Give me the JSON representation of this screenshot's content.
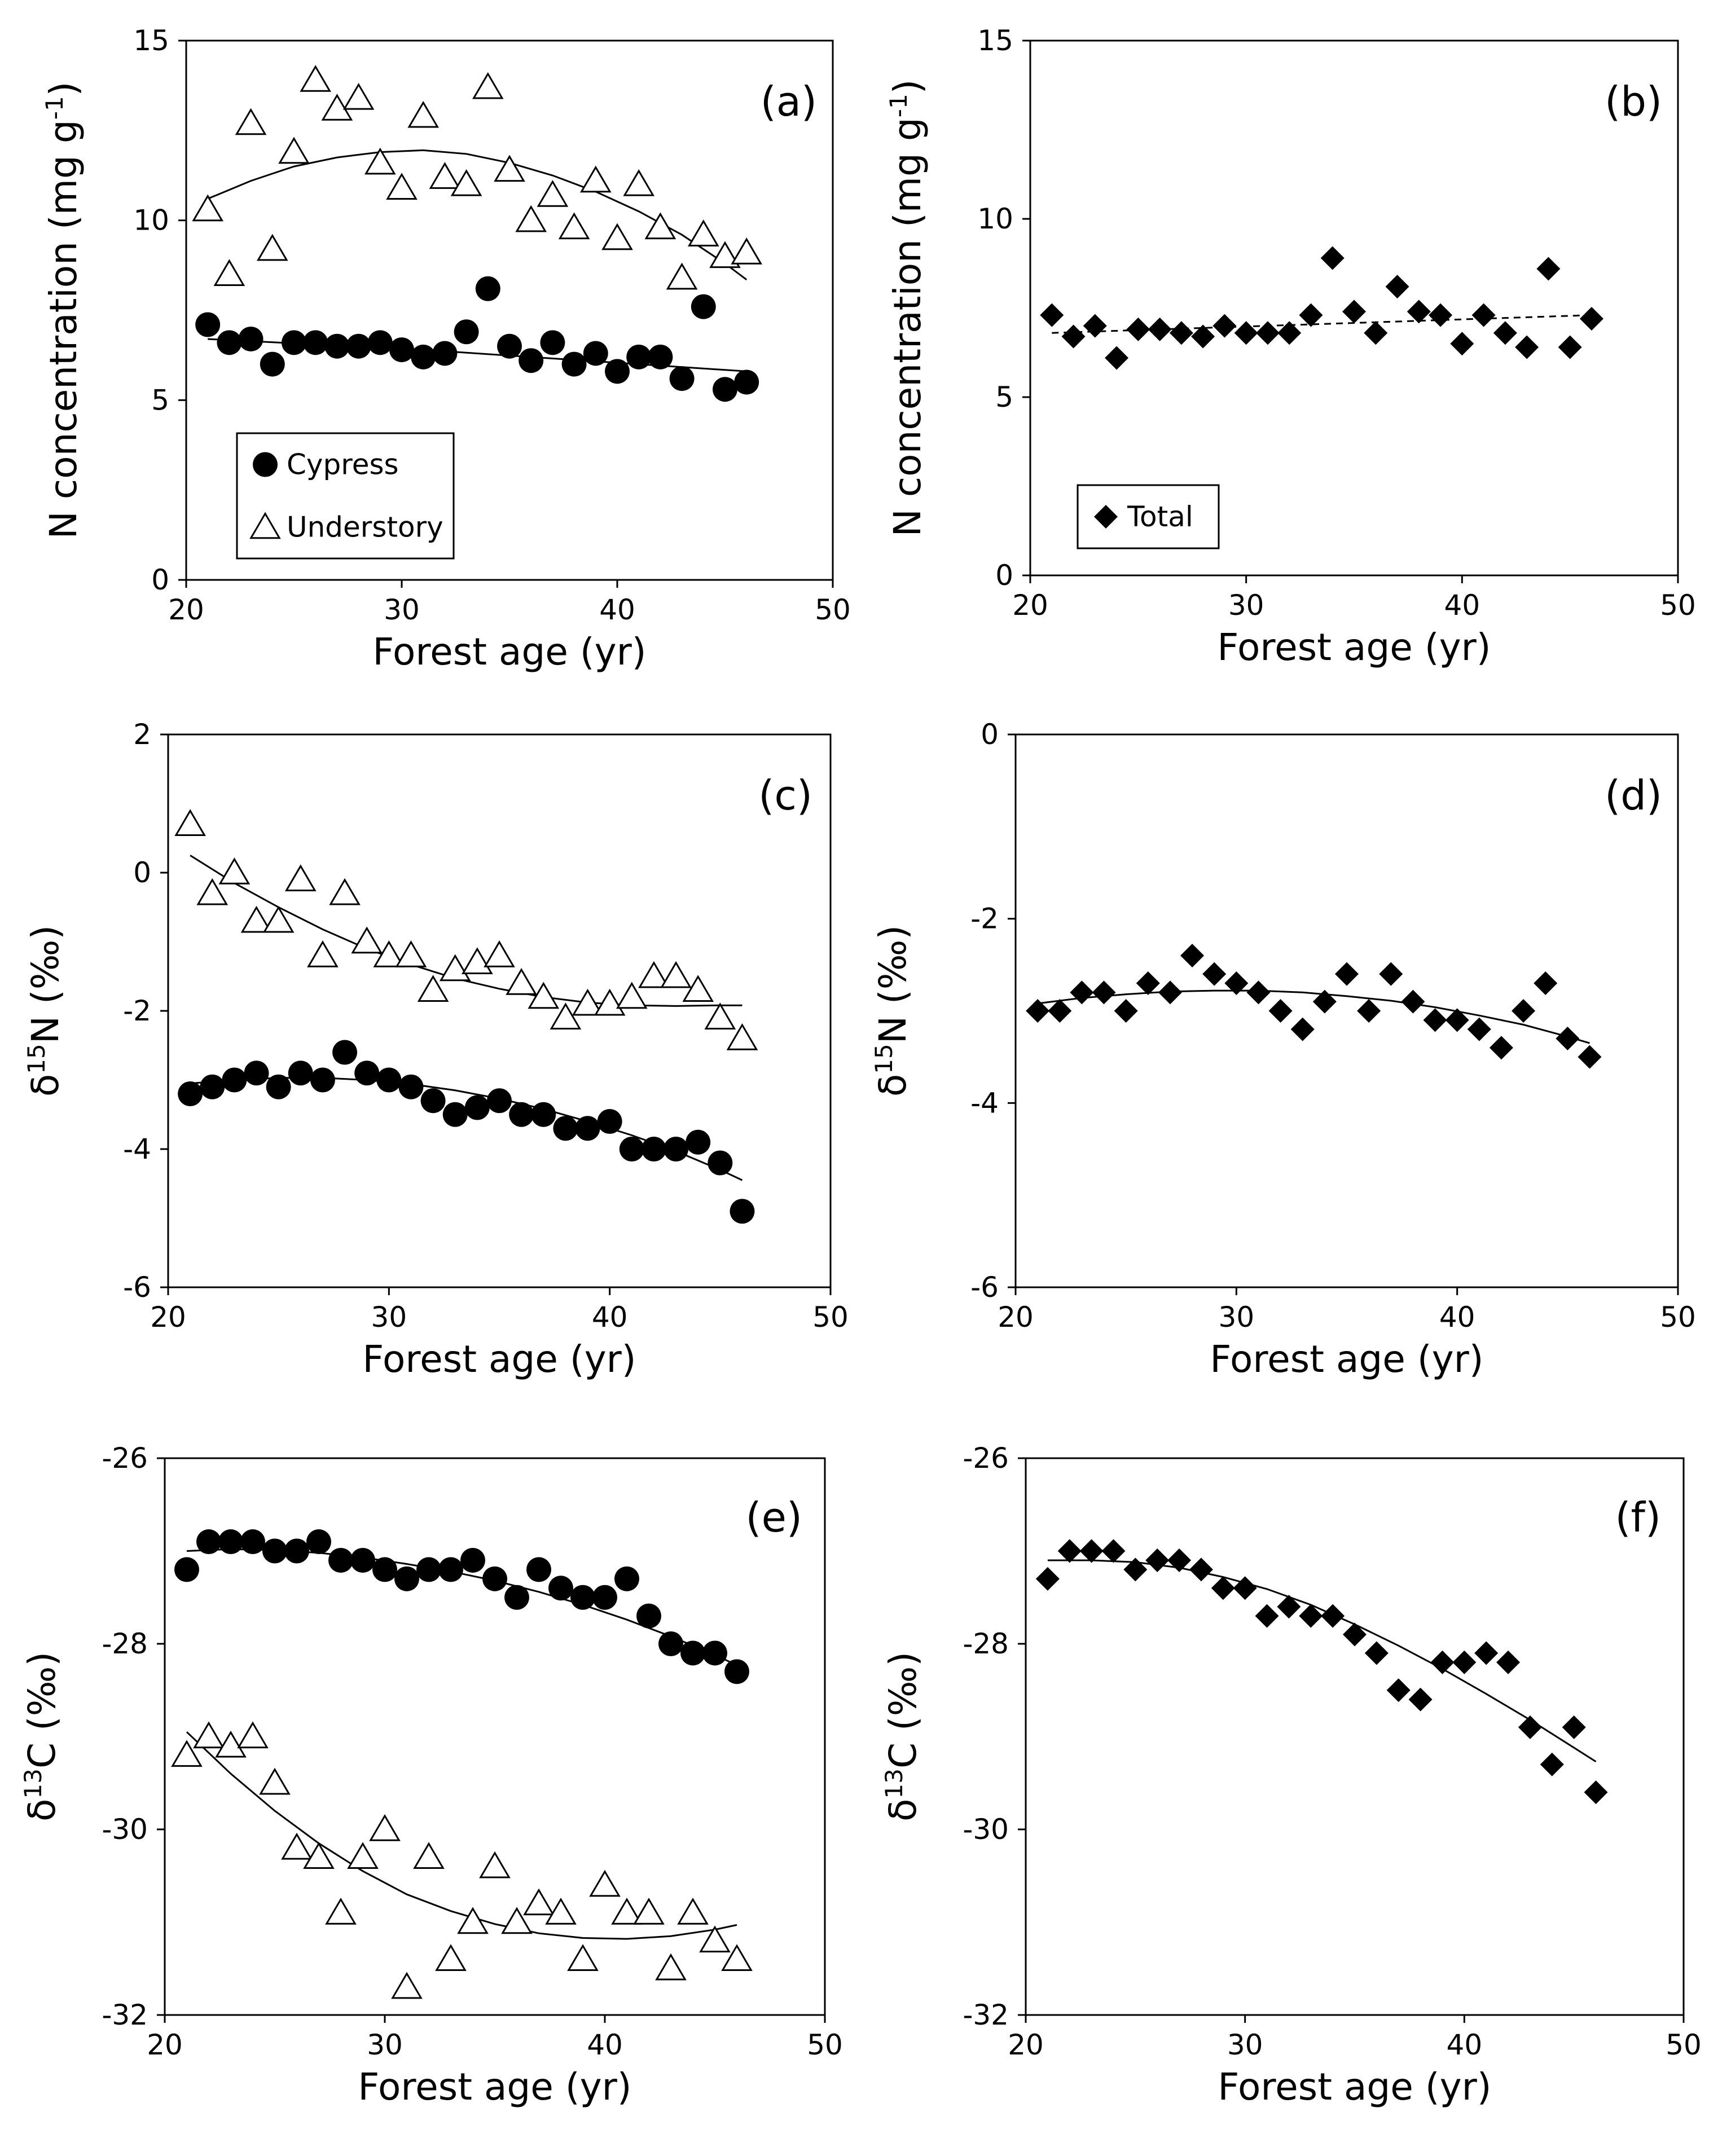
{
  "chart_data": [
    {
      "id": "a",
      "type": "scatter",
      "panel_label": "(a)",
      "xlabel": "Forest age (yr)",
      "ylabel": "N concentration (mg g",
      "ylabel_sup": "-1",
      "ylabel_tail": ")",
      "xlim": [
        20,
        50
      ],
      "ylim": [
        0,
        15
      ],
      "xticks": [
        20,
        30,
        40,
        50
      ],
      "yticks": [
        0,
        5,
        10,
        15
      ],
      "xtick_labels": [
        "20",
        "30",
        "40",
        "50"
      ],
      "ytick_labels": [
        "0",
        "5",
        "10",
        "15"
      ],
      "legend": {
        "position": "bottom-left",
        "entries": [
          "Cypress",
          "Understory"
        ]
      },
      "series": [
        {
          "name": "Cypress",
          "marker": "circle",
          "x": [
            21,
            22,
            23,
            24,
            25,
            26,
            27,
            28,
            29,
            30,
            31,
            32,
            33,
            34,
            35,
            36,
            37,
            38,
            39,
            40,
            41,
            42,
            43,
            44,
            45,
            46
          ],
          "y": [
            7.1,
            6.6,
            6.7,
            6.0,
            6.6,
            6.6,
            6.5,
            6.5,
            6.6,
            6.4,
            6.2,
            6.3,
            6.9,
            8.1,
            6.5,
            6.1,
            6.6,
            6.0,
            6.3,
            5.8,
            6.2,
            6.2,
            5.6,
            7.6,
            5.3,
            5.5
          ],
          "trend": {
            "style": "solid",
            "x": [
              21,
              26,
              31,
              36,
              41,
              46
            ],
            "y": [
              6.7,
              6.55,
              6.4,
              6.2,
              6.0,
              5.8
            ]
          }
        },
        {
          "name": "Understory",
          "marker": "triangle",
          "x": [
            21,
            22,
            23,
            24,
            25,
            26,
            27,
            28,
            29,
            30,
            31,
            32,
            33,
            34,
            35,
            36,
            37,
            38,
            39,
            40,
            41,
            42,
            43,
            44,
            45,
            46
          ],
          "y": [
            10.3,
            8.5,
            12.7,
            9.2,
            11.9,
            13.9,
            13.1,
            13.4,
            11.6,
            10.9,
            12.9,
            11.2,
            11.0,
            13.7,
            11.4,
            10.0,
            10.7,
            9.8,
            11.1,
            9.5,
            11.0,
            9.8,
            8.4,
            9.6,
            9.0,
            9.1
          ],
          "trend": {
            "style": "solid",
            "x": [
              21,
              23,
              25,
              27,
              29,
              31,
              33,
              35,
              37,
              39,
              41,
              43,
              45,
              46
            ],
            "y": [
              10.6,
              11.1,
              11.5,
              11.75,
              11.9,
              11.95,
              11.85,
              11.6,
              11.25,
              10.8,
              10.25,
              9.6,
              8.8,
              8.35
            ]
          }
        }
      ]
    },
    {
      "id": "b",
      "type": "scatter",
      "panel_label": "(b)",
      "xlabel": "Forest age (yr)",
      "ylabel": "N concentration (mg g",
      "ylabel_sup": "-1",
      "ylabel_tail": ")",
      "xlim": [
        20,
        50
      ],
      "ylim": [
        0,
        15
      ],
      "xticks": [
        20,
        30,
        40,
        50
      ],
      "yticks": [
        0,
        5,
        10,
        15
      ],
      "xtick_labels": [
        "20",
        "30",
        "40",
        "50"
      ],
      "ytick_labels": [
        "0",
        "5",
        "10",
        "15"
      ],
      "legend": {
        "position": "bottom-left",
        "entries": [
          "Total"
        ]
      },
      "series": [
        {
          "name": "Total",
          "marker": "diamond",
          "x": [
            21,
            22,
            23,
            24,
            25,
            26,
            27,
            28,
            29,
            30,
            31,
            32,
            33,
            34,
            35,
            36,
            37,
            38,
            39,
            40,
            41,
            42,
            43,
            44,
            45,
            46
          ],
          "y": [
            7.3,
            6.7,
            7.0,
            6.1,
            6.9,
            6.9,
            6.8,
            6.7,
            7.0,
            6.8,
            6.8,
            6.8,
            7.3,
            8.9,
            7.4,
            6.8,
            8.1,
            7.4,
            7.3,
            6.5,
            7.3,
            6.8,
            6.4,
            8.6,
            6.4,
            7.2
          ],
          "trend": {
            "style": "dashed",
            "x": [
              21,
              46
            ],
            "y": [
              6.8,
              7.3
            ]
          }
        }
      ]
    },
    {
      "id": "c",
      "type": "scatter",
      "panel_label": "(c)",
      "xlabel": "Forest age (yr)",
      "ylabel": "δ",
      "ylabel_sup": "15",
      "ylabel_tail": "N (‰)",
      "xlim": [
        20,
        50
      ],
      "ylim": [
        -6,
        2
      ],
      "xticks": [
        20,
        30,
        40,
        50
      ],
      "yticks": [
        -6,
        -4,
        -2,
        0,
        2
      ],
      "xtick_labels": [
        "20",
        "30",
        "40",
        "50"
      ],
      "ytick_labels": [
        "-6",
        "-4",
        "-2",
        "0",
        "2"
      ],
      "series": [
        {
          "name": "Cypress",
          "marker": "circle",
          "x": [
            21,
            22,
            23,
            24,
            25,
            26,
            27,
            28,
            29,
            30,
            31,
            32,
            33,
            34,
            35,
            36,
            37,
            38,
            39,
            40,
            41,
            42,
            43,
            44,
            45,
            46
          ],
          "y": [
            -3.2,
            -3.1,
            -3.0,
            -2.9,
            -3.1,
            -2.9,
            -3.0,
            -2.6,
            -2.9,
            -3.0,
            -3.1,
            -3.3,
            -3.5,
            -3.4,
            -3.3,
            -3.5,
            -3.5,
            -3.7,
            -3.7,
            -3.6,
            -4.0,
            -4.0,
            -4.0,
            -3.9,
            -4.2,
            -4.9
          ],
          "trend": {
            "style": "solid",
            "x": [
              21,
              23,
              25,
              27,
              29,
              31,
              33,
              35,
              37,
              39,
              41,
              43,
              45,
              46
            ],
            "y": [
              -3.05,
              -3.0,
              -2.97,
              -2.97,
              -3.0,
              -3.06,
              -3.15,
              -3.27,
              -3.42,
              -3.6,
              -3.8,
              -4.03,
              -4.3,
              -4.45
            ]
          }
        },
        {
          "name": "Understory",
          "marker": "triangle",
          "x": [
            21,
            22,
            23,
            24,
            25,
            26,
            27,
            28,
            29,
            30,
            31,
            32,
            33,
            34,
            35,
            36,
            37,
            38,
            39,
            40,
            41,
            42,
            43,
            44,
            45,
            46
          ],
          "y": [
            0.7,
            -0.3,
            0.0,
            -0.7,
            -0.7,
            -0.1,
            -1.2,
            -0.3,
            -1.0,
            -1.2,
            -1.2,
            -1.7,
            -1.4,
            -1.3,
            -1.2,
            -1.6,
            -1.8,
            -2.1,
            -1.9,
            -1.9,
            -1.8,
            -1.5,
            -1.5,
            -1.7,
            -2.1,
            -2.4
          ],
          "trend": {
            "style": "solid",
            "x": [
              21,
              23,
              25,
              27,
              29,
              31,
              33,
              35,
              37,
              39,
              41,
              43,
              45,
              46
            ],
            "y": [
              0.25,
              -0.15,
              -0.5,
              -0.82,
              -1.1,
              -1.33,
              -1.53,
              -1.68,
              -1.8,
              -1.88,
              -1.92,
              -1.93,
              -1.92,
              -1.92
            ]
          }
        }
      ]
    },
    {
      "id": "d",
      "type": "scatter",
      "panel_label": "(d)",
      "xlabel": "Forest age (yr)",
      "ylabel": "δ",
      "ylabel_sup": "15",
      "ylabel_tail": "N (‰)",
      "xlim": [
        20,
        50
      ],
      "ylim": [
        -6,
        0
      ],
      "xticks": [
        20,
        30,
        40,
        50
      ],
      "yticks": [
        -6,
        -4,
        -2,
        0
      ],
      "xtick_labels": [
        "20",
        "30",
        "40",
        "50"
      ],
      "ytick_labels": [
        "-6",
        "-4",
        "-2",
        "0"
      ],
      "series": [
        {
          "name": "Total",
          "marker": "diamond",
          "x": [
            21,
            22,
            23,
            24,
            25,
            26,
            27,
            28,
            29,
            30,
            31,
            32,
            33,
            34,
            35,
            36,
            37,
            38,
            39,
            40,
            41,
            42,
            43,
            44,
            45,
            46
          ],
          "y": [
            -3.0,
            -3.0,
            -2.8,
            -2.8,
            -3.0,
            -2.7,
            -2.8,
            -2.4,
            -2.6,
            -2.7,
            -2.8,
            -3.0,
            -3.2,
            -2.9,
            -2.6,
            -3.0,
            -2.6,
            -2.9,
            -3.1,
            -3.1,
            -3.2,
            -3.4,
            -3.0,
            -2.7,
            -3.3,
            -3.5
          ],
          "trend": {
            "style": "solid",
            "x": [
              21,
              23,
              25,
              27,
              29,
              31,
              33,
              35,
              37,
              39,
              41,
              43,
              45,
              46
            ],
            "y": [
              -2.92,
              -2.86,
              -2.82,
              -2.79,
              -2.78,
              -2.78,
              -2.8,
              -2.84,
              -2.89,
              -2.96,
              -3.05,
              -3.15,
              -3.28,
              -3.35
            ]
          }
        }
      ]
    },
    {
      "id": "e",
      "type": "scatter",
      "panel_label": "(e)",
      "xlabel": "Forest age (yr)",
      "ylabel": "δ",
      "ylabel_sup": "13",
      "ylabel_tail": "C (‰)",
      "xlim": [
        20,
        50
      ],
      "ylim": [
        -32,
        -26
      ],
      "xticks": [
        20,
        30,
        40,
        50
      ],
      "yticks": [
        -32,
        -30,
        -28,
        -26
      ],
      "xtick_labels": [
        "20",
        "30",
        "40",
        "50"
      ],
      "ytick_labels": [
        "-32",
        "-30",
        "-28",
        "-26"
      ],
      "series": [
        {
          "name": "Cypress",
          "marker": "circle",
          "x": [
            21,
            22,
            23,
            24,
            25,
            26,
            27,
            28,
            29,
            30,
            31,
            32,
            33,
            34,
            35,
            36,
            37,
            38,
            39,
            40,
            41,
            42,
            43,
            44,
            45,
            46
          ],
          "y": [
            -27.2,
            -26.9,
            -26.9,
            -26.9,
            -27.0,
            -27.0,
            -26.9,
            -27.1,
            -27.1,
            -27.2,
            -27.3,
            -27.2,
            -27.2,
            -27.1,
            -27.3,
            -27.5,
            -27.2,
            -27.4,
            -27.5,
            -27.5,
            -27.3,
            -27.7,
            -28.0,
            -28.1,
            -28.1,
            -28.3
          ],
          "trend": {
            "style": "solid",
            "x": [
              21,
              23,
              25,
              27,
              29,
              31,
              33,
              35,
              37,
              39,
              41,
              43,
              45,
              46
            ],
            "y": [
              -27.0,
              -26.98,
              -26.99,
              -27.02,
              -27.07,
              -27.14,
              -27.22,
              -27.32,
              -27.44,
              -27.58,
              -27.74,
              -27.92,
              -28.12,
              -28.23
            ]
          }
        },
        {
          "name": "Understory",
          "marker": "triangle",
          "x": [
            21,
            22,
            23,
            24,
            25,
            26,
            27,
            28,
            29,
            30,
            31,
            32,
            33,
            34,
            35,
            36,
            37,
            38,
            39,
            40,
            41,
            42,
            43,
            44,
            45,
            46
          ],
          "y": [
            -29.2,
            -29.0,
            -29.1,
            -29.0,
            -29.5,
            -30.2,
            -30.3,
            -30.9,
            -30.3,
            -30.0,
            -31.7,
            -30.3,
            -31.4,
            -31.0,
            -30.4,
            -31.0,
            -30.8,
            -30.9,
            -31.4,
            -30.6,
            -30.9,
            -30.9,
            -31.5,
            -30.9,
            -31.2,
            -31.4
          ],
          "trend": {
            "style": "solid",
            "x": [
              21,
              23,
              25,
              27,
              29,
              31,
              33,
              35,
              37,
              39,
              41,
              43,
              45,
              46
            ],
            "y": [
              -28.95,
              -29.4,
              -29.8,
              -30.15,
              -30.45,
              -30.7,
              -30.88,
              -31.02,
              -31.12,
              -31.17,
              -31.18,
              -31.15,
              -31.08,
              -31.03
            ]
          }
        }
      ]
    },
    {
      "id": "f",
      "type": "scatter",
      "panel_label": "(f)",
      "xlabel": "Forest age (yr)",
      "ylabel": "δ",
      "ylabel_sup": "13",
      "ylabel_tail": "C (‰)",
      "xlim": [
        20,
        50
      ],
      "ylim": [
        -32,
        -26
      ],
      "xticks": [
        20,
        30,
        40,
        50
      ],
      "yticks": [
        -32,
        -30,
        -28,
        -26
      ],
      "xtick_labels": [
        "20",
        "30",
        "40",
        "50"
      ],
      "ytick_labels": [
        "-32",
        "-30",
        "-28",
        "-26"
      ],
      "series": [
        {
          "name": "Total",
          "marker": "diamond",
          "x": [
            21,
            22,
            23,
            24,
            25,
            26,
            27,
            28,
            29,
            30,
            31,
            32,
            33,
            34,
            35,
            36,
            37,
            38,
            39,
            40,
            41,
            42,
            43,
            44,
            45,
            46
          ],
          "y": [
            -27.3,
            -27.0,
            -27.0,
            -27.0,
            -27.2,
            -27.1,
            -27.1,
            -27.2,
            -27.4,
            -27.4,
            -27.7,
            -27.6,
            -27.7,
            -27.7,
            -27.9,
            -28.1,
            -28.5,
            -28.6,
            -28.2,
            -28.2,
            -28.1,
            -28.2,
            -28.9,
            -29.3,
            -28.9,
            -29.6
          ],
          "trend": {
            "style": "solid",
            "x": [
              21,
              23,
              25,
              27,
              29,
              31,
              33,
              35,
              37,
              39,
              41,
              43,
              45,
              46
            ],
            "y": [
              -27.1,
              -27.1,
              -27.12,
              -27.18,
              -27.28,
              -27.41,
              -27.58,
              -27.79,
              -28.02,
              -28.27,
              -28.54,
              -28.82,
              -29.12,
              -29.27
            ]
          }
        }
      ]
    }
  ]
}
